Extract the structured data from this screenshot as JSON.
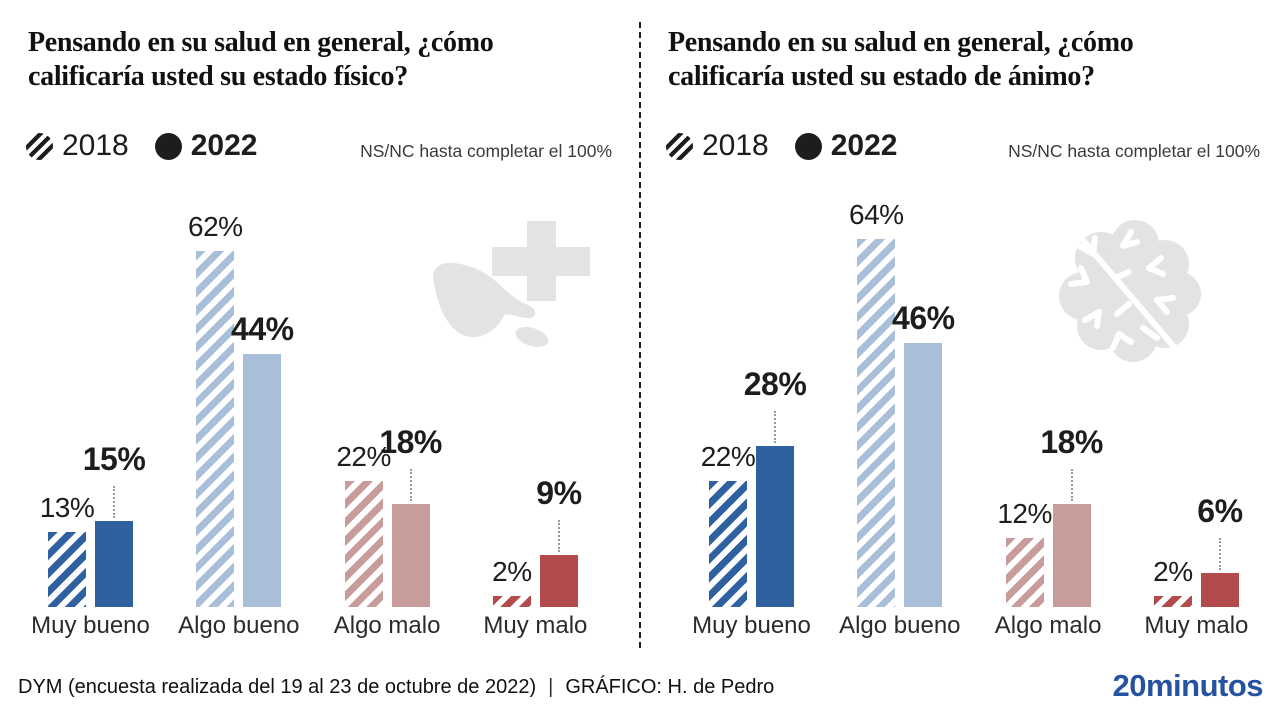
{
  "colors": {
    "dark_blue": "#2f609f",
    "light_blue": "#a9bfd9",
    "rose": "#c89c9b",
    "red": "#b34b4c",
    "legend_black": "#1d1d1b",
    "icon_gray": "#e3e3e3",
    "leader_gray": "#9a9a9a",
    "logo_blue": "#2653a1"
  },
  "icons": {
    "left_panel": "hand-cross-icon",
    "right_panel": "brain-icon",
    "legend_2018": "hatched-circle-icon",
    "legend_2022": "solid-circle-icon"
  },
  "chart_data": [
    {
      "type": "bar",
      "title": "Pensando en su salud en general, ¿cómo calificaría usted su estado físico?",
      "note": "NS/NC hasta completar el 100%",
      "unit": "%",
      "ylim": [
        0,
        100
      ],
      "grid": false,
      "legend_position": "top-left",
      "categories": [
        "Muy bueno",
        "Algo bueno",
        "Algo malo",
        "Muy malo"
      ],
      "category_colors": [
        "#2f609f",
        "#a9bfd9",
        "#c89c9b",
        "#b34b4c"
      ],
      "series": [
        {
          "name": "2018",
          "style": "hatched",
          "values": [
            13,
            62,
            22,
            2
          ]
        },
        {
          "name": "2022",
          "style": "solid",
          "values": [
            15,
            44,
            18,
            9
          ]
        }
      ],
      "icon": "hand-cross-icon"
    },
    {
      "type": "bar",
      "title": "Pensando en su salud en general, ¿cómo calificaría usted su estado de ánimo?",
      "note": "NS/NC hasta completar el 100%",
      "unit": "%",
      "ylim": [
        0,
        100
      ],
      "grid": false,
      "legend_position": "top-left",
      "categories": [
        "Muy bueno",
        "Algo bueno",
        "Algo malo",
        "Muy malo"
      ],
      "category_colors": [
        "#2f609f",
        "#a9bfd9",
        "#c89c9b",
        "#b34b4c"
      ],
      "series": [
        {
          "name": "2018",
          "style": "hatched",
          "values": [
            22,
            64,
            12,
            2
          ]
        },
        {
          "name": "2022",
          "style": "solid",
          "values": [
            28,
            46,
            18,
            6
          ]
        }
      ],
      "icon": "brain-icon"
    }
  ],
  "footer": {
    "source": "DYM (encuesta realizada del 19 al 23 de octubre de 2022)",
    "separator": "|",
    "credit": "GRÁFICO: H. de Pedro",
    "logo": "20minutos"
  }
}
